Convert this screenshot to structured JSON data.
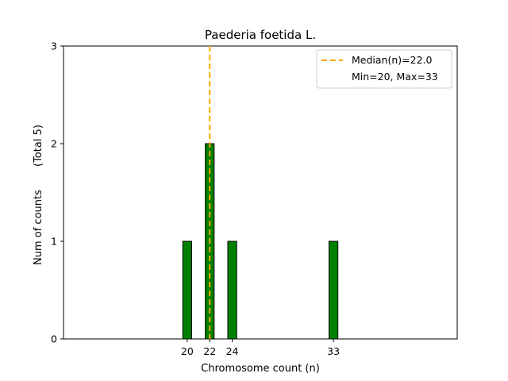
{
  "chart_data": {
    "type": "bar",
    "title": "Paederia foetida L.",
    "xlabel": "Chromosome count (n)",
    "ylabel": "Num of counts",
    "ylabel_extra": "(Total 5)",
    "x": [
      20,
      22,
      24,
      33
    ],
    "values": [
      1,
      2,
      1,
      1
    ],
    "xticks": [
      20,
      22,
      24,
      33
    ],
    "yticks": [
      0,
      1,
      2,
      3
    ],
    "xlim": [
      9,
      44
    ],
    "ylim": [
      0,
      3
    ],
    "bar_color": "#008000",
    "bar_edge_color": "#000000",
    "median": {
      "value": 22.0,
      "label": "Median(n)=22.0",
      "color": "#FFA500",
      "style": "dashed"
    },
    "legend": {
      "placement": "top-right",
      "entries": [
        "Median(n)=22.0",
        "Min=20, Max=33"
      ]
    },
    "grid": false
  }
}
